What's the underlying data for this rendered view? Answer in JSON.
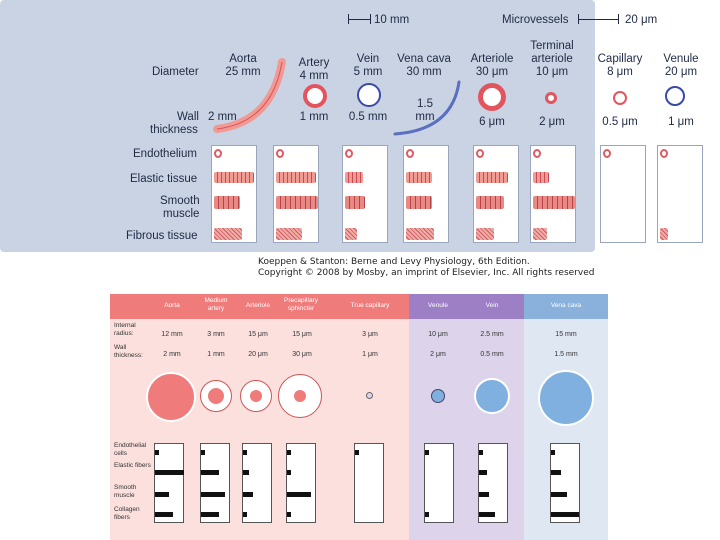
{
  "top": {
    "scale": {
      "mm": "10 mm",
      "micro_title": "Microvessels",
      "um": "20 μm"
    },
    "row_labels": {
      "diameter": "Diameter",
      "wall1": "Wall",
      "wall2": "thickness",
      "endothelium": "Endothelium",
      "elastic": "Elastic tissue",
      "smooth1": "Smooth",
      "smooth2": "muscle",
      "fibrous": "Fibrous tissue"
    },
    "vessels": [
      {
        "name": "Aorta",
        "diameter": "25 mm",
        "wall": "2 mm"
      },
      {
        "name": "Artery",
        "diameter": "4 mm",
        "wall": "1 mm"
      },
      {
        "name": "Vein",
        "diameter": "5 mm",
        "wall": "0.5 mm"
      },
      {
        "name": "Vena cava",
        "diameter": "30 mm",
        "wall1": "1.5",
        "wall2": "mm"
      },
      {
        "name": "Arteriole",
        "diameter": "30 μm",
        "wall": "6 μm"
      },
      {
        "name1": "Terminal",
        "name2": "arteriole",
        "diameter": "10 μm",
        "wall": "2 μm"
      },
      {
        "name": "Capillary",
        "diameter": "8 μm",
        "wall": "0.5 μm"
      },
      {
        "name": "Venule",
        "diameter": "20 μm",
        "wall": "1 μm"
      }
    ],
    "credit1": "Koeppen & Stanton: Berne and Levy Physiology, 6th Edition.",
    "credit2": "Copyright © 2008 by Mosby, an imprint of Elsevier, Inc. All rights reserved"
  },
  "bottom": {
    "headers": [
      "Aorta",
      "Medium artery",
      "Arteriole",
      "Precapillary sphincter",
      "True capillary",
      "Venule",
      "Vein",
      "Vena cava"
    ],
    "row_labels": {
      "radius": "Internal radius:",
      "wall": "Wall thickness:",
      "endo": "Endothelial cells",
      "elastic": "Elastic fibers",
      "smooth": "Smooth muscle",
      "collagen": "Collagen fibers"
    },
    "radius": [
      "12 mm",
      "3 mm",
      "15 μm",
      "15 μm",
      "3 μm",
      "10 μm",
      "2.5 mm",
      "15 mm"
    ],
    "wall": [
      "2 mm",
      "1 mm",
      "20 μm",
      "30 μm",
      "1 μm",
      "2 μm",
      "0.5 mm",
      "1.5 mm"
    ],
    "colors": {
      "artery": "#f07b7b",
      "capillary": "#9c7fc4",
      "vein": "#8ab1dc",
      "artery_bg": "#fbe0de",
      "cap_bg": "#ddd4ec",
      "vein_bg": "#dfe7f3"
    }
  }
}
